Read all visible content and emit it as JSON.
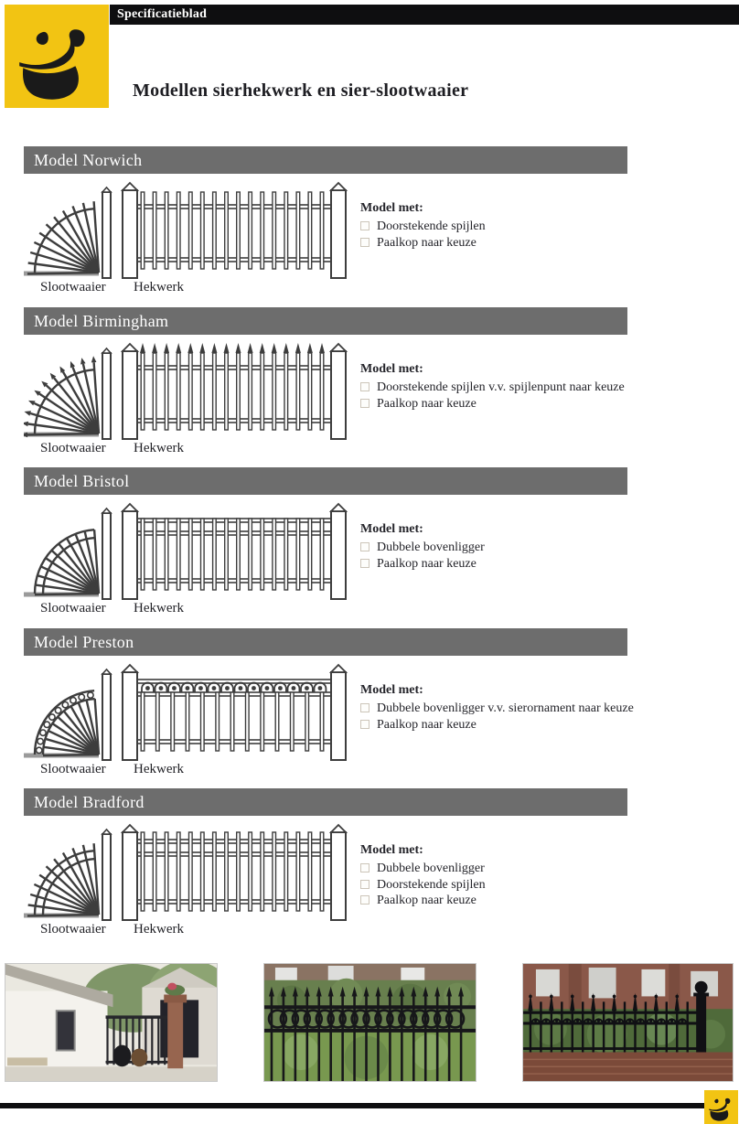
{
  "header": {
    "banner": "Specificatieblad",
    "title": "Modellen sierhekwerk en sier-slootwaaier"
  },
  "sections": [
    {
      "title": "Model Norwich",
      "features_heading": "Model met:",
      "features": [
        "Doorstekende spijlen",
        "Paalkop naar keuze"
      ],
      "fan_label": "Slootwaaier",
      "fence_label": "Hekwerk"
    },
    {
      "title": "Model Birmingham",
      "features_heading": "Model met:",
      "features": [
        "Doorstekende spijlen v.v. spijlenpunt naar keuze",
        "Paalkop naar keuze"
      ],
      "fan_label": "Slootwaaier",
      "fence_label": "Hekwerk"
    },
    {
      "title": "Model Bristol",
      "features_heading": "Model met:",
      "features": [
        "Dubbele bovenligger",
        "Paalkop naar keuze"
      ],
      "fan_label": "Slootwaaier",
      "fence_label": "Hekwerk"
    },
    {
      "title": "Model Preston",
      "features_heading": "Model met:",
      "features": [
        "Dubbele bovenligger v.v. sierornament naar keuze",
        "Paalkop naar keuze"
      ],
      "fan_label": "Slootwaaier",
      "fence_label": "Hekwerk"
    },
    {
      "title": "Model Bradford",
      "features_heading": "Model met:",
      "features": [
        "Dubbele bovenligger",
        "Doorstekende spijlen",
        "Paalkop naar keuze"
      ],
      "fan_label": "Slootwaaier",
      "fence_label": "Hekwerk"
    }
  ],
  "photos": [
    {
      "description": "black-gate-with-dogs-at-white-farmhouse"
    },
    {
      "description": "black-fence-with-ring-ornaments-before-hedge"
    },
    {
      "description": "ornamental-black-fence-on-brick-wall"
    }
  ],
  "colors": {
    "brand_yellow": "#f2c413",
    "banner_black": "#0e0e10",
    "section_bar_gray": "#6d6d6d"
  }
}
